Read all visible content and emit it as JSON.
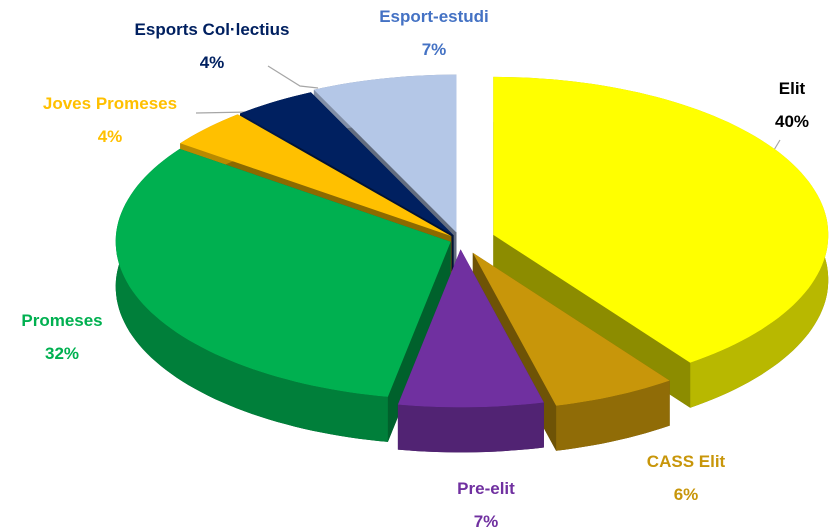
{
  "chart_data": {
    "type": "pie",
    "categories": [
      "Elit",
      "CASS Elit",
      "Pre-elit",
      "Promeses",
      "Joves Promeses",
      "Esports Col·lectius",
      "Esport-estudi"
    ],
    "values": [
      40,
      6,
      7,
      32,
      4,
      4,
      7
    ],
    "value_labels": [
      "40%",
      "6%",
      "7%",
      "32%",
      "4%",
      "4%",
      "7%"
    ],
    "colors": [
      "#ffff00",
      "#c8960a",
      "#7030a0",
      "#00b050",
      "#ffc000",
      "#002060",
      "#b4c7e7"
    ],
    "label_colors": [
      "#000000",
      "#c8960a",
      "#7030a0",
      "#00b050",
      "#ffc000",
      "#002060",
      "#4472c4"
    ]
  }
}
